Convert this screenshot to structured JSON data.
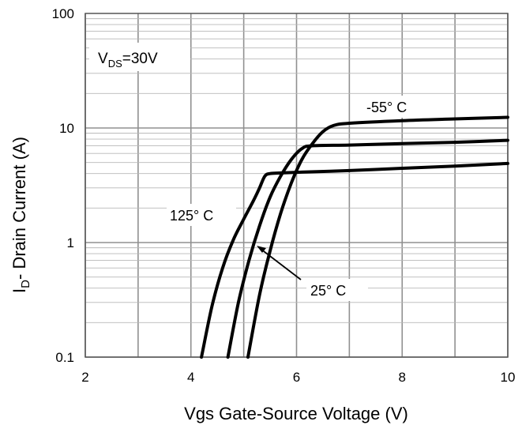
{
  "chart_data": {
    "type": "line",
    "title": "",
    "xlabel": "Vgs Gate-Source Voltage (V)",
    "ylabel": {
      "prefix": "I",
      "sub": "D",
      "rest": "- Drain Current (A)"
    },
    "xlim": [
      2,
      10
    ],
    "ylim": [
      0.1,
      100
    ],
    "yscale": "log",
    "grid": true,
    "x_ticks": [
      "2",
      "4",
      "6",
      "8",
      "10"
    ],
    "y_ticks": [
      "0.1",
      "1",
      "10",
      "100"
    ],
    "condition": {
      "prefix": "V",
      "sub": "DS",
      "rest": "=30V"
    },
    "series": [
      {
        "name": "125° C",
        "x": [
          4.2,
          4.4,
          4.6,
          4.8,
          5.0,
          5.2,
          5.3,
          5.4,
          5.5,
          5.7,
          6.0,
          7.0,
          8.0,
          9.0,
          10.0
        ],
        "y": [
          0.1,
          0.28,
          0.6,
          1.05,
          1.6,
          2.4,
          3.0,
          3.8,
          4.0,
          4.05,
          4.1,
          4.25,
          4.45,
          4.65,
          4.9
        ]
      },
      {
        "name": "25° C",
        "x": [
          4.7,
          4.9,
          5.1,
          5.3,
          5.5,
          5.7,
          5.9,
          6.1,
          6.3,
          7.0,
          8.0,
          9.0,
          10.0
        ],
        "y": [
          0.1,
          0.3,
          0.7,
          1.4,
          2.5,
          3.8,
          5.3,
          6.6,
          7.0,
          7.1,
          7.3,
          7.5,
          7.8
        ]
      },
      {
        "name": "-55° C",
        "x": [
          5.08,
          5.3,
          5.5,
          5.7,
          5.9,
          6.1,
          6.3,
          6.5,
          6.7,
          7.0,
          8.0,
          9.0,
          10.0
        ],
        "y": [
          0.1,
          0.35,
          0.85,
          1.8,
          3.3,
          5.3,
          7.3,
          9.3,
          10.5,
          11.0,
          11.6,
          12.0,
          12.4
        ]
      }
    ],
    "annotations": [
      {
        "text": "-55° C",
        "series": "-55° C"
      },
      {
        "text": "125° C",
        "series": "125° C"
      },
      {
        "text": "25° C",
        "series": "25° C"
      }
    ]
  }
}
